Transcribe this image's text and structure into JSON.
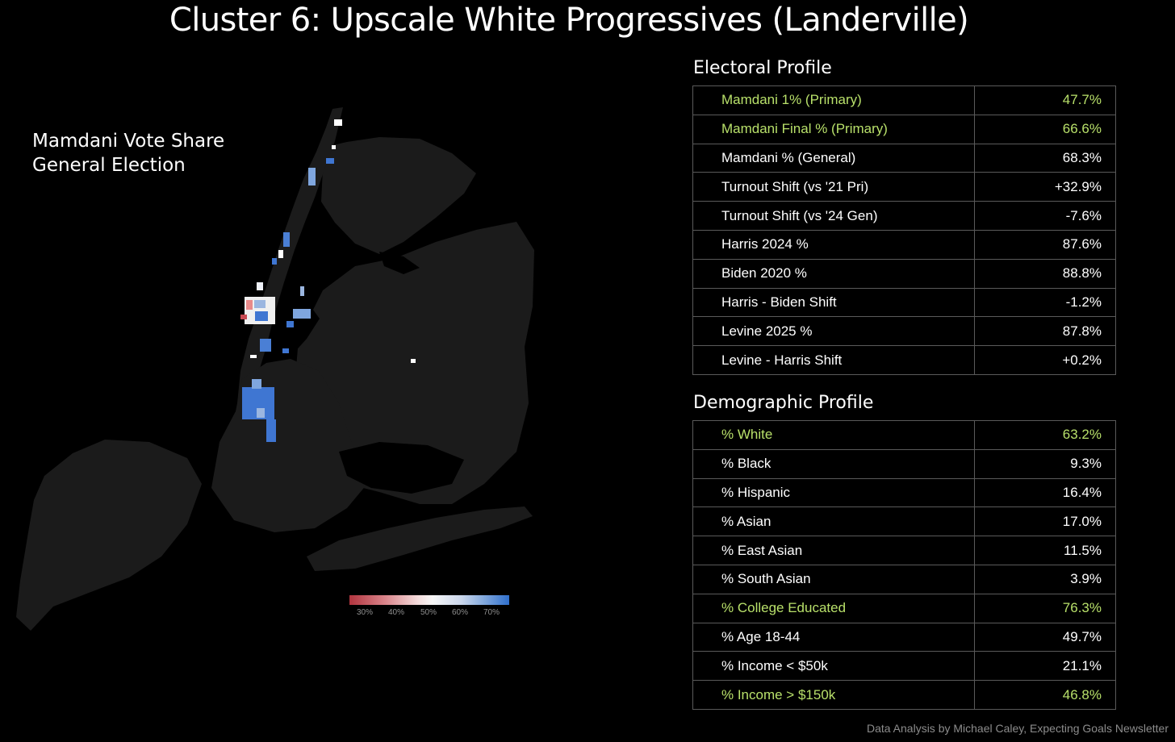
{
  "title": "Cluster 6: Upscale White Progressives (Landerville)",
  "map": {
    "label_line1": "Mamdani Vote Share",
    "label_line2": "General Election",
    "land_color": "#1b1b1b",
    "water_color": "#000000",
    "scale_low_color": "#b2353f",
    "scale_mid_color": "#f7f7f7",
    "scale_high_color": "#2f6fcc",
    "legend_ticks": [
      "30%",
      "40%",
      "50%",
      "60%",
      "70%"
    ]
  },
  "electoral_profile": {
    "heading": "Electoral Profile",
    "rows": [
      {
        "label": "Mamdani 1% (Primary)",
        "value": "47.7%",
        "highlight": true
      },
      {
        "label": "Mamdani Final % (Primary)",
        "value": "66.6%",
        "highlight": true
      },
      {
        "label": "Mamdani % (General)",
        "value": "68.3%",
        "highlight": false
      },
      {
        "label": "Turnout Shift (vs '21 Pri)",
        "value": "+32.9%",
        "highlight": false
      },
      {
        "label": "Turnout Shift (vs '24 Gen)",
        "value": "-7.6%",
        "highlight": false
      },
      {
        "label": "Harris 2024 %",
        "value": "87.6%",
        "highlight": false
      },
      {
        "label": "Biden 2020 %",
        "value": "88.8%",
        "highlight": false
      },
      {
        "label": "Harris - Biden Shift",
        "value": "-1.2%",
        "highlight": false
      },
      {
        "label": "Levine 2025 %",
        "value": "87.8%",
        "highlight": false
      },
      {
        "label": "Levine - Harris Shift",
        "value": "+0.2%",
        "highlight": false
      }
    ]
  },
  "demographic_profile": {
    "heading": "Demographic Profile",
    "rows": [
      {
        "label": "% White",
        "value": "63.2%",
        "highlight": true
      },
      {
        "label": "% Black",
        "value": "9.3%",
        "highlight": false
      },
      {
        "label": "% Hispanic",
        "value": "16.4%",
        "highlight": false
      },
      {
        "label": "% Asian",
        "value": "17.0%",
        "highlight": false
      },
      {
        "label": "% East Asian",
        "value": "11.5%",
        "highlight": false
      },
      {
        "label": "% South Asian",
        "value": "3.9%",
        "highlight": false
      },
      {
        "label": "% College Educated",
        "value": "76.3%",
        "highlight": true
      },
      {
        "label": "% Age 18-44",
        "value": "49.7%",
        "highlight": false
      },
      {
        "label": "% Income < $50k",
        "value": "21.1%",
        "highlight": false
      },
      {
        "label": "% Income > $150k",
        "value": "46.8%",
        "highlight": true
      }
    ]
  },
  "colors": {
    "highlight": "#b8e06a",
    "grid_line": "#5a5a5a"
  },
  "footer": "Data Analysis by Michael Caley, Expecting Goals Newsletter"
}
